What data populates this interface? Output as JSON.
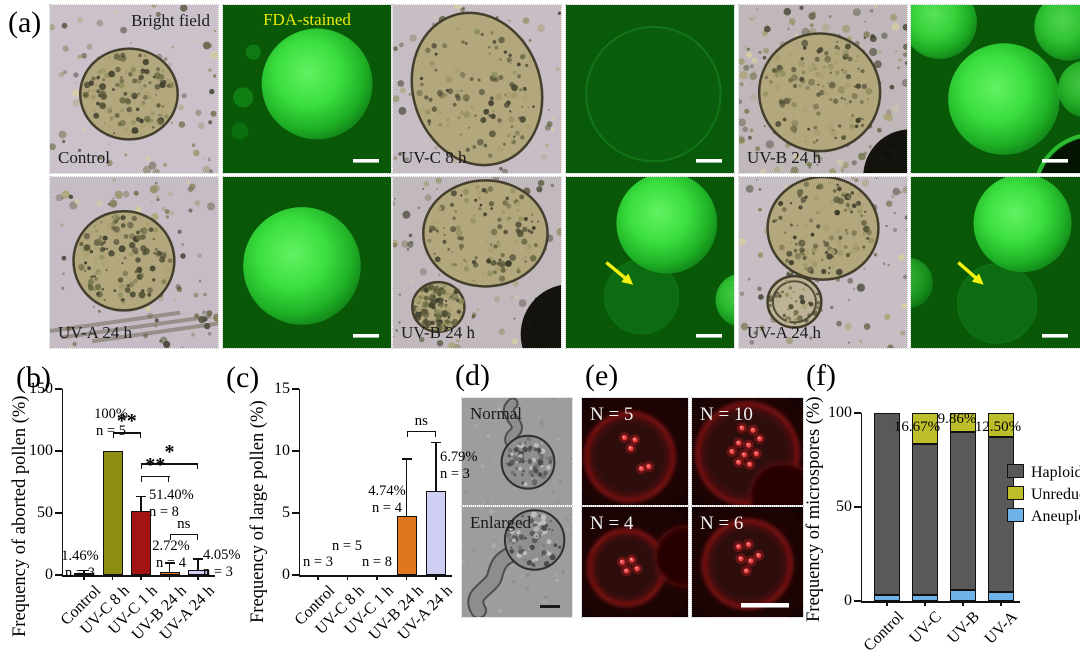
{
  "figure": {
    "panel_a": {
      "label": "(a)",
      "tiles": [
        {
          "name": "control-brightfield",
          "kind": "bright",
          "top_right": "Bright field",
          "bottom_left": "Control"
        },
        {
          "name": "control-fda",
          "kind": "fda",
          "top_center": "FDA-stained"
        },
        {
          "name": "uvc-8h-brightfield",
          "kind": "bright",
          "bottom_left": "UV-C 8 h"
        },
        {
          "name": "uvc-8h-fda",
          "kind": "fda"
        },
        {
          "name": "uvb-24h-brightfield",
          "kind": "bright",
          "bottom_left": "UV-B 24 h"
        },
        {
          "name": "uvb-24h-fda",
          "kind": "fda"
        },
        {
          "name": "uva-24h-brightfield",
          "kind": "bright",
          "bottom_left": "UV-A 24 h"
        },
        {
          "name": "uva-24h-fda",
          "kind": "fda"
        },
        {
          "name": "uvb-24h-brightfield-2",
          "kind": "bright",
          "bottom_left": "UV-B 24 h"
        },
        {
          "name": "uvb-24h-fda-2",
          "kind": "fda"
        },
        {
          "name": "uva-24h-brightfield-2",
          "kind": "bright",
          "bottom_left": "UV-A 24 h"
        },
        {
          "name": "uva-24h-fda-2",
          "kind": "fda"
        }
      ]
    },
    "panel_b": {
      "label": "(b)"
    },
    "panel_c": {
      "label": "(c)"
    },
    "panel_d": {
      "label": "(d)",
      "images": [
        {
          "label": "Normal"
        },
        {
          "label": "Enlarged"
        }
      ]
    },
    "panel_e": {
      "label": "(e)",
      "images": [
        {
          "label": "N = 5"
        },
        {
          "label": "N = 10"
        },
        {
          "label": "N = 4"
        },
        {
          "label": "N = 6"
        }
      ]
    },
    "panel_f": {
      "label": "(f)"
    }
  },
  "chart_data": [
    {
      "id": "b",
      "type": "bar",
      "ylabel": "Frequency of aborted pollen (%)",
      "categories": [
        "Control",
        "UV-C 8 h",
        "UV-C 1 h",
        "UV-B 24 h",
        "UV-A 24 h"
      ],
      "values": [
        1.46,
        100,
        51.4,
        2.72,
        4.05
      ],
      "errors": [
        2,
        0,
        12,
        7,
        9
      ],
      "n": [
        3,
        5,
        8,
        4,
        3
      ],
      "bar_labels": [
        [
          "1.46%",
          "n = 3"
        ],
        [
          "100%",
          "n = 5"
        ],
        [
          "51.40%",
          "n = 8"
        ],
        [
          "2.72%",
          "n = 4"
        ],
        [
          "4.05%",
          "n = 3"
        ]
      ],
      "bar_colors": [
        "#141414",
        "#8d8d12",
        "#a31313",
        "#e0761e",
        "#cfcef3"
      ],
      "ylim": [
        0,
        150
      ],
      "yticks": [
        0,
        50,
        100,
        150
      ],
      "significance": [
        {
          "from": 1,
          "to": 2,
          "label": "**",
          "y": 115
        },
        {
          "from": 2,
          "to": 4,
          "label": "*",
          "y": 90
        },
        {
          "from": 2,
          "to": 3,
          "label": "**",
          "y": 80
        },
        {
          "from": 3,
          "to": 4,
          "label": "ns",
          "y": 33
        }
      ]
    },
    {
      "id": "c",
      "type": "bar",
      "ylabel": "Frequency of large pollen (%)",
      "categories": [
        "Control",
        "UV-C 8 h",
        "UV-C 1 h",
        "UV-B 24 h",
        "UV-A 24 h"
      ],
      "values": [
        0,
        0,
        0,
        4.74,
        6.79
      ],
      "errors": [
        0,
        0,
        0,
        4.6,
        3.9
      ],
      "n": [
        3,
        5,
        8,
        4,
        3
      ],
      "bar_labels": [
        [
          "n = 3"
        ],
        [
          "n = 5"
        ],
        [
          "n = 8"
        ],
        [
          "4.74%",
          "n = 4"
        ],
        [
          "6.79%",
          "n = 3"
        ]
      ],
      "bar_colors": [
        "#141414",
        "#8d8d12",
        "#a31313",
        "#e0761e",
        "#cfcef3"
      ],
      "ylim": [
        0,
        15
      ],
      "yticks": [
        0,
        5,
        10,
        15
      ],
      "significance": [
        {
          "from": 3,
          "to": 4,
          "label": "ns",
          "y": 11.6
        }
      ]
    },
    {
      "id": "f",
      "type": "stacked-bar",
      "ylabel": "Frequency of microspores (%)",
      "categories": [
        "Control",
        "UV-C",
        "UV-B",
        "UV-A"
      ],
      "series": [
        {
          "name": "Haploid",
          "color": "#595959",
          "values": [
            97,
            80.3,
            84.1,
            82.5
          ]
        },
        {
          "name": "Unreduced",
          "color": "#bdbf2a",
          "values": [
            0,
            16.67,
            9.86,
            12.5
          ]
        },
        {
          "name": "Aneuploid",
          "color": "#6fb2e8",
          "values": [
            3,
            3,
            6,
            5
          ]
        }
      ],
      "segment_labels": [
        "",
        "16.67%",
        "9.86%",
        "12.50%"
      ],
      "ylim": [
        0,
        100
      ],
      "yticks": [
        0,
        50,
        100
      ],
      "legend": [
        "Haploid",
        "Unreduced",
        "Aneuploid"
      ]
    }
  ]
}
